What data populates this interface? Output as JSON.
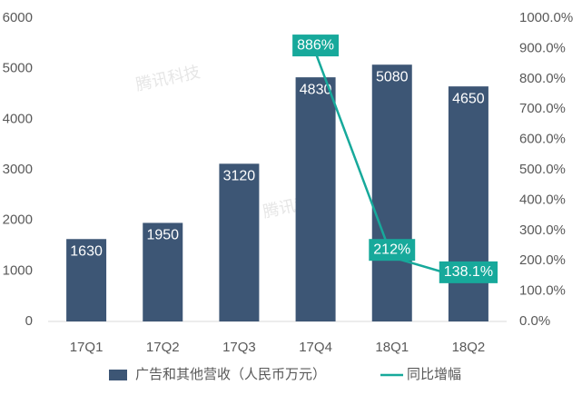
{
  "chart_data": {
    "type": "bar",
    "categories": [
      "17Q1",
      "17Q2",
      "17Q3",
      "17Q4",
      "18Q1",
      "18Q2"
    ],
    "series": [
      {
        "name": "广告和其他营收（人民币万元）",
        "color": "#3d5675",
        "values": [
          1630,
          1950,
          3120,
          4830,
          5080,
          4650
        ]
      },
      {
        "name": "同比增幅",
        "type": "line",
        "axis": "y2",
        "color": "#17a99b",
        "values": [
          null,
          null,
          null,
          886,
          212,
          138.1
        ],
        "value_labels": [
          null,
          null,
          null,
          "886%",
          "212%",
          "138.1%"
        ]
      }
    ],
    "ylim": [
      0,
      6000
    ],
    "yticks": [
      0,
      1000,
      2000,
      3000,
      4000,
      5000,
      6000
    ],
    "y2lim": [
      0,
      1000
    ],
    "y2ticks": [
      {
        "value": 0,
        "label": "0.0%"
      },
      {
        "value": 100,
        "label": "100.0%"
      },
      {
        "value": 200,
        "label": "200.0%"
      },
      {
        "value": 300,
        "label": "300.0%"
      },
      {
        "value": 400,
        "label": "400.0%"
      },
      {
        "value": 500,
        "label": "500.0%"
      },
      {
        "value": 600,
        "label": "600.0%"
      },
      {
        "value": 700,
        "label": "700.0%"
      },
      {
        "value": 800,
        "label": "800.0%"
      },
      {
        "value": 900,
        "label": "900.0%"
      },
      {
        "value": 1000,
        "label": "1000.0%"
      }
    ],
    "watermark": "腾讯科技",
    "grid": false
  }
}
